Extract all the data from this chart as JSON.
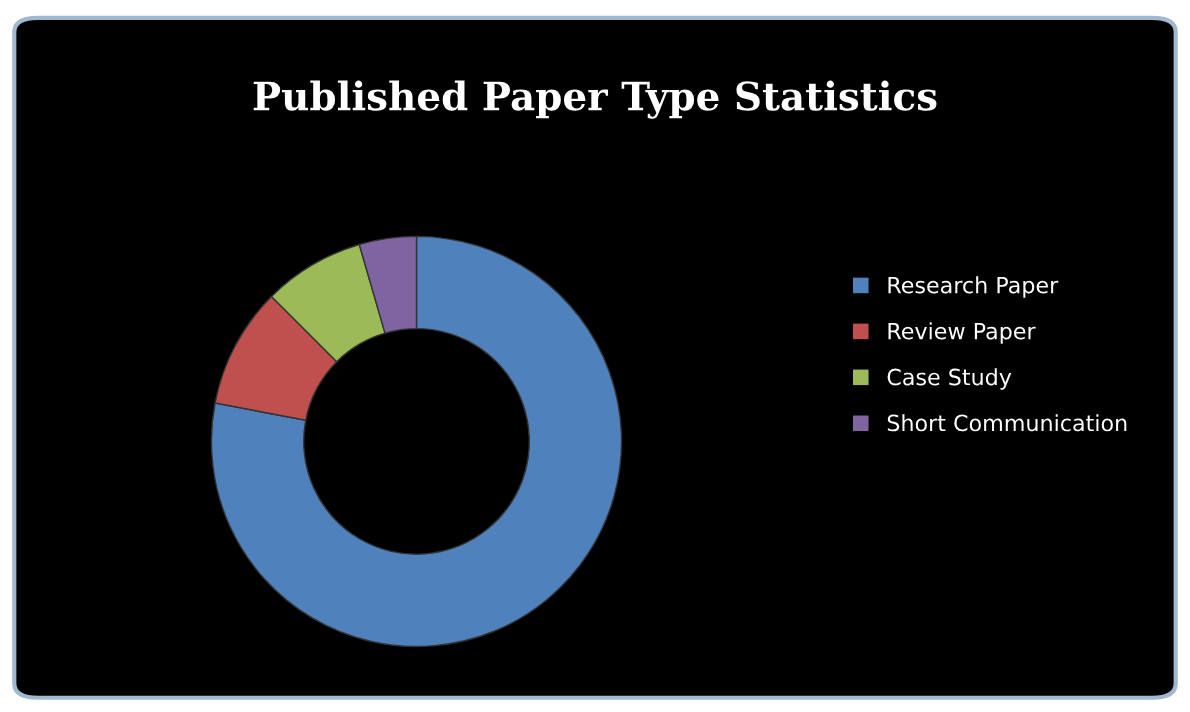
{
  "chart_data": {
    "type": "donut",
    "title": "Published Paper Type Statistics",
    "categories": [
      "Research Paper",
      "Review Paper",
      "Case Study",
      "Short Communication"
    ],
    "values": [
      78,
      9.5,
      8,
      4.5
    ],
    "colors": [
      "#4f81bd",
      "#c0504d",
      "#9bbb59",
      "#8064a2"
    ],
    "legend": "right"
  }
}
